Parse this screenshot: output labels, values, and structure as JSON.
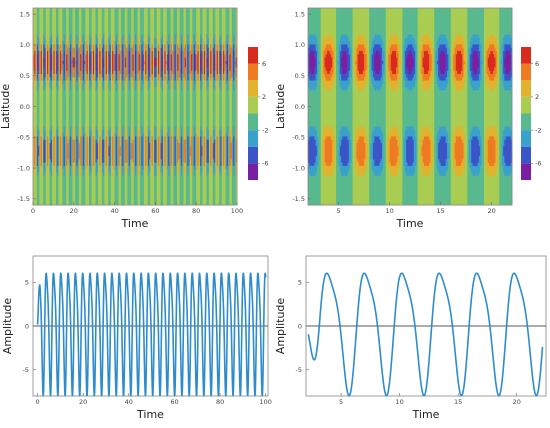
{
  "palette": [
    "#7b1fa2",
    "#3a55c8",
    "#3aa0cc",
    "#58b98f",
    "#a9cd52",
    "#e0b22e",
    "#ee7a22",
    "#d92a1e"
  ],
  "chart_data": [
    {
      "panel": "top-left",
      "type": "heatmap",
      "xlabel": "Time",
      "ylabel": "Latitude",
      "xlim": [
        0,
        100
      ],
      "ylim": [
        -1.6,
        1.6
      ],
      "xticks": [
        0,
        20,
        40,
        60,
        80,
        100
      ],
      "yticks": [
        -1.5,
        -1.0,
        -0.5,
        0.0,
        0.5,
        1.0,
        1.5
      ],
      "colorbar": {
        "ticks": [
          -6,
          -2,
          2,
          6
        ],
        "range": [
          -8,
          8
        ]
      },
      "pattern": {
        "period": 3.2,
        "lat_centers": [
          -0.72,
          0.72
        ],
        "amplitude": 7.5
      }
    },
    {
      "panel": "top-right",
      "type": "heatmap",
      "xlabel": "Time",
      "ylabel": "Latitude",
      "xlim": [
        2,
        22
      ],
      "ylim": [
        -1.6,
        1.6
      ],
      "xticks": [
        5,
        10,
        15,
        20
      ],
      "yticks": [
        -1.5,
        -1.0,
        -0.5,
        0.0,
        0.5,
        1.0,
        1.5
      ],
      "colorbar": {
        "ticks": [
          -6,
          -2,
          2,
          6
        ],
        "range": [
          -8,
          8
        ]
      },
      "pattern": {
        "period": 3.2,
        "lat_centers": [
          -0.72,
          0.72
        ],
        "amplitude": 7.5
      }
    },
    {
      "panel": "bottom-left",
      "type": "line",
      "xlabel": "Time",
      "ylabel": "Amplitude",
      "xlim": [
        -2,
        101
      ],
      "ylim": [
        -8,
        8
      ],
      "xticks": [
        0,
        20,
        40,
        60,
        80,
        100
      ],
      "yticks": [
        -5,
        0,
        5
      ],
      "series": [
        {
          "period": 3.2,
          "amplitude": 7.2,
          "t_start": 0,
          "t_end": 100,
          "color": "#2e8ccd"
        }
      ]
    },
    {
      "panel": "bottom-right",
      "type": "line",
      "xlabel": "Time",
      "ylabel": "Amplitude",
      "xlim": [
        2,
        22.5
      ],
      "ylim": [
        -8,
        8
      ],
      "xticks": [
        5,
        10,
        15,
        20
      ],
      "yticks": [
        -5,
        0,
        5
      ],
      "series": [
        {
          "period": 3.2,
          "amplitude": 7.2,
          "t_start": 2.2,
          "t_end": 22.2,
          "color": "#2e8ccd"
        }
      ]
    }
  ]
}
